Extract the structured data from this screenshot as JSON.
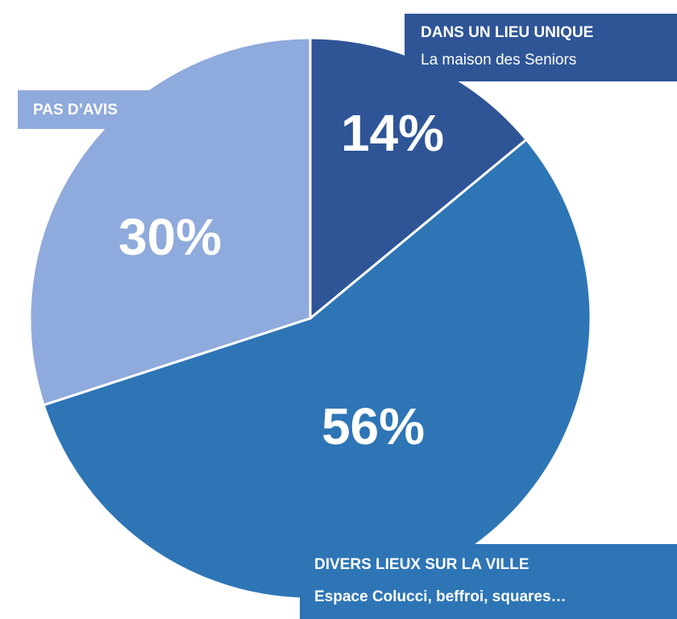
{
  "chart_data": {
    "type": "pie",
    "categories": [
      "DANS UN LIEU UNIQUE",
      "DIVERS LIEUX SUR LA VILLE",
      "PAS D’AVIS"
    ],
    "category_details": [
      "La maison des Seniors",
      "Espace Colucci, beffroi, squares…",
      null
    ],
    "values": [
      14,
      56,
      30
    ],
    "value_labels": [
      "14%",
      "56%",
      "30%"
    ],
    "colors": [
      "#2f5597",
      "#2e75b6",
      "#8faadc"
    ],
    "start_angle": 0,
    "direction": "clockwise"
  }
}
